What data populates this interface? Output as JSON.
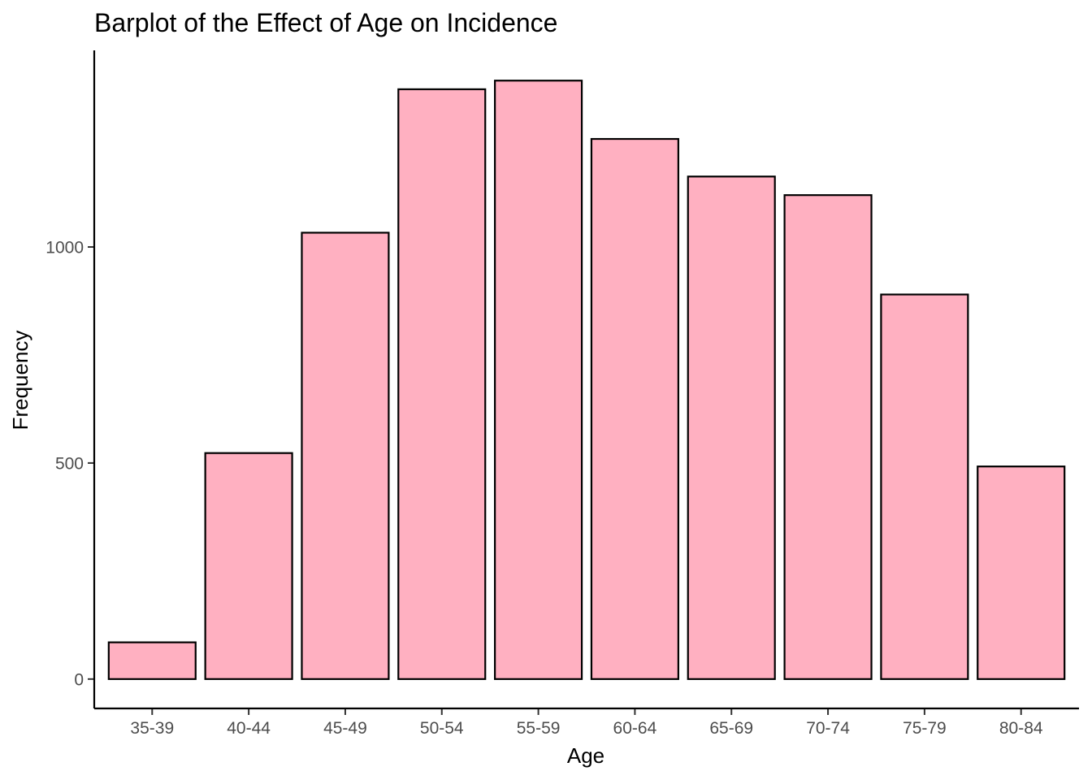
{
  "chart_data": {
    "type": "bar",
    "title": "Barplot of the Effect of Age on Incidence",
    "xlabel": "Age",
    "ylabel": "Frequency",
    "categories": [
      "35-39",
      "40-44",
      "45-49",
      "50-54",
      "55-59",
      "60-64",
      "65-69",
      "70-74",
      "75-79",
      "80-84"
    ],
    "values": [
      85,
      523,
      1033,
      1365,
      1385,
      1250,
      1163,
      1120,
      890,
      492
    ],
    "ylim": [
      -68,
      1455
    ],
    "yticks": [
      0,
      500,
      1000
    ],
    "grid": false,
    "legend": "none",
    "bar_fill": "#FFB0C1",
    "bar_stroke": "#000000"
  }
}
